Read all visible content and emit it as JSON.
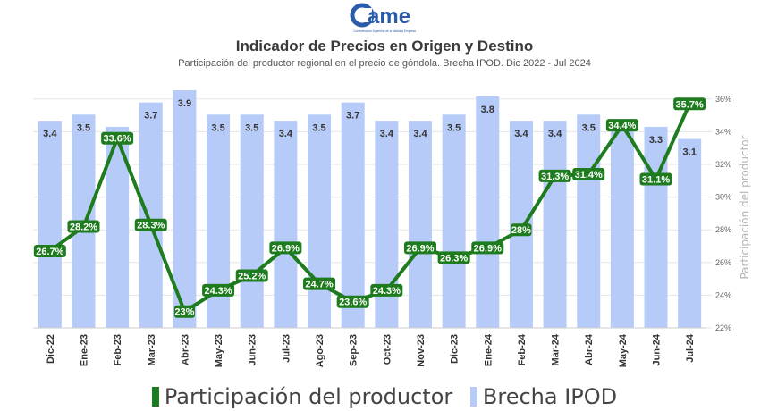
{
  "logo": {
    "text": "ame",
    "tagline": "Confederación Argentina de la Mediana Empresa"
  },
  "title": "Indicador de Precios en Origen y Destino",
  "subtitle": "Participación del productor regional en el precio de góndola. Brecha IPOD. Dic 2022 - Jul 2024",
  "colors": {
    "bar": "#b7cbf8",
    "line": "#1e7b1e",
    "label_bg": "#1e7b1e",
    "label_text": "#ffffff",
    "grid": "#e6e6e6",
    "axis_text": "#666666"
  },
  "chart_data": {
    "type": "bar+line",
    "categories": [
      "Dic-22",
      "Ene-23",
      "Feb-23",
      "Mar-23",
      "Abr-23",
      "May-23",
      "Jun-23",
      "Jul-23",
      "Ago-23",
      "Sep-23",
      "Oct-23",
      "Nov-23",
      "Dic-23",
      "Ene-24",
      "Feb-24",
      "Mar-24",
      "Abr-24",
      "May-24",
      "Jun-24",
      "Jul-24"
    ],
    "series": [
      {
        "name": "Brecha IPOD",
        "kind": "bar",
        "values": [
          3.4,
          3.5,
          3.3,
          3.7,
          3.9,
          3.5,
          3.5,
          3.4,
          3.5,
          3.7,
          3.4,
          3.4,
          3.5,
          3.8,
          3.4,
          3.4,
          3.5,
          3.4,
          3.3,
          3.1
        ],
        "labels": [
          "3.4",
          "3.5",
          "",
          "3.7",
          "3.9",
          "3.5",
          "3.5",
          "3.4",
          "3.5",
          "3.7",
          "3.4",
          "3.4",
          "3.5",
          "3.8",
          "3.4",
          "3.4",
          "3.5",
          "",
          "3.3",
          "3.1"
        ]
      },
      {
        "name": "Participación del productor",
        "kind": "line",
        "values": [
          26.7,
          28.2,
          33.6,
          28.3,
          23.0,
          24.3,
          25.2,
          26.9,
          24.7,
          23.6,
          24.3,
          26.9,
          26.3,
          26.9,
          28.0,
          31.3,
          31.4,
          34.4,
          31.1,
          35.7
        ],
        "labels": [
          "26.7%",
          "28.2%",
          "33.6%",
          "28.3%",
          "23%",
          "24.3%",
          "25.2%",
          "26.9%",
          "24.7%",
          "23.6%",
          "24.3%",
          "26.9%",
          "26.3%",
          "26.9%",
          "28%",
          "31.3%",
          "31.4%",
          "34.4%",
          "31.1%",
          "35.7%"
        ]
      }
    ],
    "y2_ticks": [
      "22%",
      "24%",
      "26%",
      "28%",
      "30%",
      "32%",
      "34%",
      "36%"
    ],
    "y2_range": [
      22,
      36.7
    ],
    "bar_range": [
      0,
      3.9
    ],
    "y2_label": "Participación del productor"
  },
  "legend": {
    "line_label": "Participación del productor",
    "bar_label": "Brecha IPOD"
  }
}
